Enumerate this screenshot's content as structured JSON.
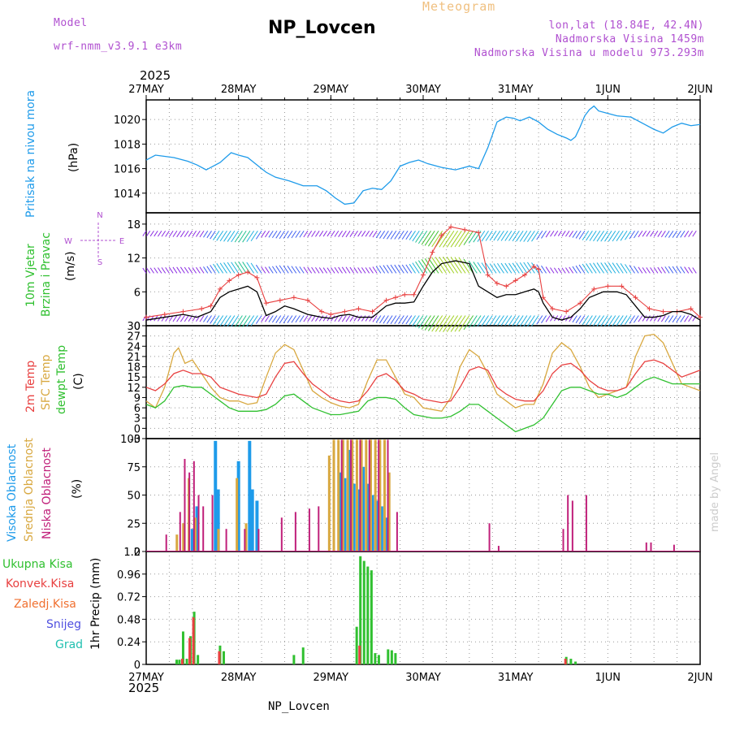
{
  "header": {
    "model_label": "Model",
    "model_name": "wrf-nmm_v3.9.1 e3km",
    "title": "NP_Lovcen",
    "meteogram_label": "Meteogram",
    "lonlat": "lon,lat (18.84E, 42.4N)",
    "altitude": "Nadmorska Visina 1459m",
    "model_altitude": "Nadmorska Visina u modelu 973.293m",
    "year": "2025",
    "footer_title": "NP_Lovcen",
    "watermark": "made by Angel"
  },
  "dates": [
    "27MAY",
    "28MAY",
    "29MAY",
    "30MAY",
    "31MAY",
    "1JUN",
    "2JUN"
  ],
  "colors": {
    "pressure": "#1e9bea",
    "temp2m": "#e84040",
    "sfc": "#d8a840",
    "dewpt": "#30c030",
    "high_cloud": "#1e9bea",
    "mid_cloud": "#d8a840",
    "low_cloud": "#c0207a",
    "total_precip": "#30c030",
    "conv_precip": "#e84040",
    "snow": "#5050e0",
    "grad": "#20c0b0",
    "frozen": "#f07030"
  },
  "chart_data": [
    {
      "type": "line",
      "title": "Pritisak na nivou mora",
      "ylabel_left": "Pritisak na nivou mora",
      "ylabel": "(hPa)",
      "ylim": [
        1012.4,
        1021.6
      ],
      "yticks": [
        1014,
        1016,
        1018,
        1020
      ],
      "x_unit": "days since 27MAY 00UTC",
      "series": [
        {
          "name": "MSLP",
          "x": [
            0,
            0.1,
            0.2,
            0.3,
            0.45,
            0.55,
            0.65,
            0.8,
            0.92,
            1.0,
            1.1,
            1.2,
            1.3,
            1.4,
            1.55,
            1.7,
            1.85,
            1.95,
            2.05,
            2.15,
            2.25,
            2.35,
            2.45,
            2.55,
            2.65,
            2.75,
            2.85,
            2.95,
            3.05,
            3.2,
            3.35,
            3.5,
            3.6,
            3.7,
            3.8,
            3.9,
            3.98,
            4.05,
            4.15,
            4.25,
            4.35,
            4.45,
            4.55,
            4.6,
            4.65,
            4.7,
            4.75,
            4.8,
            4.85,
            4.9,
            5.0,
            5.1,
            5.25,
            5.4,
            5.5,
            5.6,
            5.7,
            5.8,
            5.9,
            6.0
          ],
          "values": [
            1016.7,
            1017.1,
            1017.0,
            1016.9,
            1016.6,
            1016.3,
            1015.9,
            1016.5,
            1017.3,
            1017.1,
            1016.9,
            1016.3,
            1015.7,
            1015.3,
            1015.0,
            1014.6,
            1014.6,
            1014.2,
            1013.6,
            1013.1,
            1013.2,
            1014.2,
            1014.4,
            1014.3,
            1015.0,
            1016.2,
            1016.5,
            1016.7,
            1016.4,
            1016.1,
            1015.9,
            1016.2,
            1016.0,
            1017.7,
            1019.8,
            1020.2,
            1020.1,
            1019.9,
            1020.2,
            1019.8,
            1019.2,
            1018.8,
            1018.5,
            1018.3,
            1018.6,
            1019.4,
            1020.3,
            1020.8,
            1021.1,
            1020.7,
            1020.5,
            1020.3,
            1020.2,
            1019.6,
            1019.2,
            1018.9,
            1019.4,
            1019.7,
            1019.5,
            1019.6
          ]
        }
      ]
    },
    {
      "type": "line",
      "title": "10m Vjetar Brzina i Pravac",
      "ylabel_left": [
        "10m Vjetar",
        "Brzina i Pravac"
      ],
      "ylabel": "(m/s)",
      "ylim": [
        0,
        20
      ],
      "yticks": [
        0,
        6,
        12,
        18
      ],
      "compass": {
        "n": "N",
        "w": "W",
        "e": "E",
        "s": "S"
      },
      "x_unit": "days since 27MAY 00UTC",
      "series": [
        {
          "name": "wind speed",
          "color": "#000000",
          "x": [
            0,
            0.2,
            0.4,
            0.55,
            0.7,
            0.8,
            0.9,
            1.0,
            1.1,
            1.2,
            1.3,
            1.4,
            1.5,
            1.6,
            1.75,
            1.9,
            2.0,
            2.1,
            2.2,
            2.3,
            2.45,
            2.6,
            2.7,
            2.8,
            2.9,
            3.0,
            3.1,
            3.2,
            3.35,
            3.5,
            3.6,
            3.7,
            3.8,
            3.9,
            4.0,
            4.1,
            4.2,
            4.25,
            4.3,
            4.4,
            4.5,
            4.6,
            4.7,
            4.8,
            4.95,
            5.1,
            5.2,
            5.3,
            5.4,
            5.5,
            5.6,
            5.7,
            5.8,
            5.9,
            6.0
          ],
          "values": [
            1.0,
            1.5,
            2.0,
            1.5,
            2.5,
            5.0,
            6.0,
            6.5,
            7.0,
            6.0,
            1.8,
            2.5,
            3.5,
            3.0,
            2.0,
            1.5,
            1.3,
            1.8,
            2.0,
            1.5,
            1.5,
            3.5,
            4.0,
            4.0,
            4.2,
            7.0,
            9.5,
            11.0,
            11.5,
            11.0,
            7.0,
            6.0,
            5.0,
            5.5,
            5.5,
            6.0,
            6.5,
            6.0,
            4.0,
            1.5,
            1.0,
            1.5,
            3.0,
            5.0,
            6.0,
            6.0,
            5.5,
            3.5,
            1.5,
            1.5,
            1.8,
            2.5,
            2.5,
            2.0,
            1.0
          ]
        },
        {
          "name": "wind gust",
          "color": "#e84040",
          "x": [
            0,
            0.2,
            0.4,
            0.6,
            0.7,
            0.8,
            0.9,
            1.0,
            1.1,
            1.2,
            1.3,
            1.45,
            1.6,
            1.75,
            1.9,
            2.0,
            2.15,
            2.3,
            2.45,
            2.6,
            2.7,
            2.8,
            2.9,
            3.0,
            3.1,
            3.2,
            3.3,
            3.45,
            3.6,
            3.7,
            3.8,
            3.9,
            4.0,
            4.1,
            4.2,
            4.25,
            4.3,
            4.4,
            4.55,
            4.7,
            4.85,
            5.0,
            5.15,
            5.3,
            5.45,
            5.6,
            5.75,
            5.9,
            6.0
          ],
          "values": [
            1.5,
            2.0,
            2.5,
            3.0,
            3.5,
            6.5,
            8.0,
            9.0,
            9.5,
            8.5,
            4.0,
            4.5,
            5.0,
            4.5,
            2.5,
            2.0,
            2.5,
            3.0,
            2.5,
            4.5,
            5.0,
            5.5,
            5.5,
            9.0,
            13.0,
            16.0,
            17.5,
            17.0,
            16.5,
            9.0,
            7.5,
            7.0,
            8.0,
            9.0,
            10.5,
            10.0,
            5.0,
            3.0,
            2.5,
            4.0,
            6.5,
            7.0,
            7.0,
            5.0,
            3.0,
            2.5,
            2.5,
            3.0,
            1.5
          ]
        }
      ]
    },
    {
      "type": "line",
      "title": "2m Temp / SFC Temp / dewpt Temp",
      "ylabel_left": [
        "2m Temp",
        "SFC Temp",
        "dewpt Temp"
      ],
      "ylabel": "(C)",
      "ylim": [
        -3,
        30
      ],
      "yticks": [
        -3,
        0,
        3,
        6,
        9,
        12,
        15,
        18,
        21,
        24,
        27,
        30
      ],
      "x_unit": "days since 27MAY 00UTC",
      "series": [
        {
          "name": "SFC Temp",
          "color": "#d8a840",
          "x": [
            0,
            0.1,
            0.2,
            0.3,
            0.35,
            0.42,
            0.5,
            0.6,
            0.7,
            0.8,
            0.9,
            1.0,
            1.1,
            1.2,
            1.3,
            1.4,
            1.5,
            1.6,
            1.7,
            1.8,
            1.9,
            2.0,
            2.1,
            2.2,
            2.3,
            2.4,
            2.5,
            2.6,
            2.7,
            2.8,
            2.9,
            3.0,
            3.1,
            3.2,
            3.3,
            3.4,
            3.5,
            3.6,
            3.7,
            3.8,
            3.9,
            4.0,
            4.1,
            4.2,
            4.3,
            4.4,
            4.5,
            4.6,
            4.7,
            4.8,
            4.9,
            5.0,
            5.1,
            5.2,
            5.3,
            5.4,
            5.5,
            5.6,
            5.7,
            5.8,
            5.9,
            6.0
          ],
          "values": [
            8,
            6,
            12,
            22,
            23.5,
            19,
            20,
            16,
            12,
            9,
            8,
            8,
            7,
            7.5,
            15,
            22,
            24.5,
            23,
            17,
            11,
            9,
            7.5,
            6.5,
            6,
            7,
            14,
            20,
            20,
            15,
            10,
            9,
            6,
            5.5,
            5,
            9,
            18,
            23,
            21,
            16,
            10,
            8,
            6,
            7,
            7,
            13,
            22,
            25,
            23,
            18,
            12,
            9,
            10,
            11,
            12,
            21,
            27,
            27.5,
            25,
            19,
            13,
            12,
            11
          ]
        },
        {
          "name": "2m Temp",
          "color": "#e84040",
          "x": [
            0,
            0.1,
            0.2,
            0.3,
            0.4,
            0.5,
            0.6,
            0.7,
            0.8,
            0.9,
            1.0,
            1.1,
            1.2,
            1.3,
            1.4,
            1.5,
            1.6,
            1.7,
            1.8,
            1.9,
            2.0,
            2.1,
            2.2,
            2.3,
            2.4,
            2.5,
            2.6,
            2.7,
            2.8,
            2.9,
            3.0,
            3.1,
            3.2,
            3.3,
            3.4,
            3.5,
            3.6,
            3.7,
            3.8,
            3.9,
            4.0,
            4.1,
            4.2,
            4.3,
            4.4,
            4.5,
            4.6,
            4.7,
            4.8,
            4.9,
            5.0,
            5.1,
            5.2,
            5.3,
            5.4,
            5.5,
            5.6,
            5.7,
            5.8,
            5.9,
            6.0
          ],
          "values": [
            12,
            11,
            13,
            16,
            17,
            16,
            16,
            15,
            12,
            11,
            10,
            9.5,
            9,
            10,
            15,
            19,
            19.5,
            16,
            13,
            11,
            9,
            8,
            7.5,
            8,
            11,
            15,
            16,
            14,
            11,
            10,
            8.5,
            8,
            7.5,
            8,
            12,
            17,
            18,
            17,
            12,
            10,
            8.5,
            8,
            8,
            11,
            16,
            18.5,
            19,
            17,
            14,
            12,
            11,
            11,
            12,
            16,
            19.5,
            20,
            19,
            17,
            15,
            16,
            17
          ]
        },
        {
          "name": "dewpt Temp",
          "color": "#30c030",
          "x": [
            0,
            0.1,
            0.2,
            0.3,
            0.4,
            0.5,
            0.6,
            0.7,
            0.8,
            0.9,
            1.0,
            1.1,
            1.2,
            1.3,
            1.4,
            1.5,
            1.6,
            1.7,
            1.8,
            1.9,
            2.0,
            2.1,
            2.2,
            2.3,
            2.4,
            2.5,
            2.6,
            2.7,
            2.8,
            2.9,
            3.0,
            3.1,
            3.2,
            3.3,
            3.4,
            3.5,
            3.6,
            3.7,
            3.8,
            3.9,
            4.0,
            4.1,
            4.2,
            4.3,
            4.4,
            4.5,
            4.6,
            4.7,
            4.8,
            4.9,
            5.0,
            5.1,
            5.2,
            5.3,
            5.4,
            5.5,
            5.6,
            5.7,
            5.8,
            5.9,
            6.0
          ],
          "values": [
            7,
            6,
            8,
            12,
            12.5,
            12,
            12,
            10,
            8,
            6,
            5,
            5,
            5,
            5.5,
            7,
            9.5,
            10,
            8,
            6,
            5,
            4,
            4,
            4.5,
            5,
            8,
            9,
            9,
            8.5,
            6,
            4,
            3.5,
            3,
            3,
            3.5,
            5,
            7,
            7,
            5,
            3,
            1,
            -1,
            0,
            1,
            3,
            7,
            11,
            12,
            12,
            11,
            10,
            10,
            9,
            10,
            12,
            14,
            15,
            14,
            13,
            13,
            13,
            13
          ]
        }
      ]
    },
    {
      "type": "bar",
      "title": "Oblacnost",
      "ylabel_left": [
        "Visoka Oblacnost",
        "Srednja Oblacnost",
        "Niska Oblacnost"
      ],
      "ylabel": "(%)",
      "ylim": [
        0,
        100
      ],
      "yticks": [
        0,
        25,
        50,
        75,
        100
      ],
      "x_unit": "days since 27MAY 00UTC",
      "series": [
        {
          "name": "Visoka Oblacnost",
          "color": "#1e9bea",
          "x": [
            0.5,
            0.55,
            0.75,
            0.78,
            1.0,
            1.12,
            1.15,
            1.2,
            2.1,
            2.15,
            2.2,
            2.25,
            2.3,
            2.35,
            2.4,
            2.45,
            2.5,
            2.55,
            2.6
          ],
          "values": [
            20,
            40,
            98,
            55,
            80,
            98,
            55,
            45,
            70,
            65,
            90,
            60,
            55,
            75,
            60,
            50,
            45,
            40,
            30
          ]
        },
        {
          "name": "Srednja Oblacnost",
          "color": "#d8a840",
          "x": [
            0.35,
            0.42,
            0.48,
            0.55,
            0.8,
            1.0,
            1.1,
            2.0,
            2.05,
            2.1,
            2.15,
            2.2,
            2.25,
            2.3,
            2.35,
            2.4,
            2.45,
            2.5,
            2.55,
            2.6,
            2.65
          ],
          "values": [
            15,
            25,
            65,
            30,
            20,
            65,
            25,
            85,
            99,
            99,
            99,
            99,
            99,
            99,
            99,
            99,
            99,
            99,
            99,
            99,
            70
          ]
        },
        {
          "name": "Niska Oblacnost",
          "color": "#c0207a",
          "x": [
            0.2,
            0.35,
            0.4,
            0.45,
            0.5,
            0.55,
            0.6,
            0.7,
            0.85,
            1.05,
            1.2,
            1.45,
            1.6,
            1.75,
            1.85,
            2.1,
            2.2,
            2.3,
            2.4,
            2.5,
            2.6,
            2.7,
            3.7,
            3.8,
            4.5,
            4.55,
            4.6,
            4.75,
            5.4,
            5.45,
            5.7
          ],
          "values": [
            15,
            35,
            82,
            70,
            80,
            50,
            40,
            50,
            20,
            20,
            20,
            30,
            35,
            38,
            40,
            99,
            99,
            99,
            99,
            99,
            99,
            35,
            25,
            5,
            20,
            50,
            45,
            50,
            8,
            8,
            6
          ]
        }
      ]
    },
    {
      "type": "bar",
      "title": "1hr Precip",
      "ylabel": "1hr Precip (mm)",
      "ylim": [
        0,
        1.2
      ],
      "yticks": [
        0,
        0.24,
        0.48,
        0.72,
        0.96,
        1.2
      ],
      "legend": [
        "Ukupna Kisa",
        "Konvek.Kisa",
        "Zaledj.Kisa",
        "Snijeg",
        "Grad"
      ],
      "x_unit": "days since 27MAY 00UTC",
      "series": [
        {
          "name": "Ukupna Kisa",
          "color": "#30c030",
          "x": [
            0.33,
            0.36,
            0.4,
            0.44,
            0.48,
            0.52,
            0.56,
            0.8,
            0.84,
            1.6,
            1.7,
            2.28,
            2.32,
            2.36,
            2.4,
            2.44,
            2.48,
            2.52,
            2.62,
            2.66,
            2.7,
            4.55,
            4.6,
            4.65
          ],
          "values": [
            0.05,
            0.05,
            0.35,
            0.06,
            0.3,
            0.56,
            0.1,
            0.2,
            0.14,
            0.1,
            0.18,
            0.4,
            1.15,
            1.1,
            1.04,
            1.0,
            0.12,
            0.1,
            0.16,
            0.15,
            0.12,
            0.08,
            0.06,
            0.03
          ]
        },
        {
          "name": "Konvek.Kisa",
          "color": "#e84040",
          "x": [
            0.4,
            0.48,
            0.52,
            0.8,
            2.32,
            4.55
          ],
          "values": [
            0.06,
            0.28,
            0.5,
            0.14,
            0.2,
            0.06
          ]
        }
      ]
    }
  ]
}
